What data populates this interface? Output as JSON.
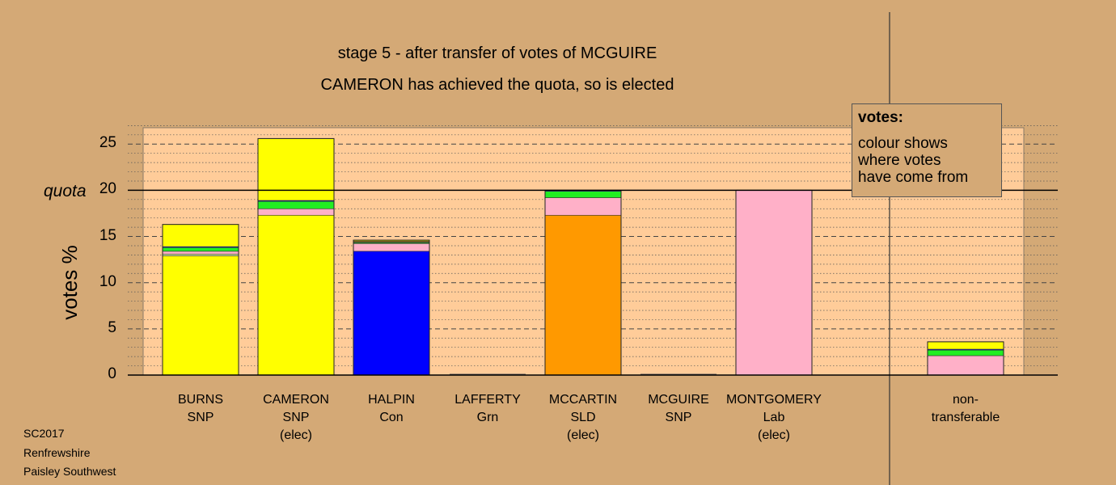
{
  "header": {
    "stage_line": "stage 5 - after transfer of votes of MCGUIRE",
    "status_line": "CAMERON has achieved the quota, so is elected"
  },
  "footer": {
    "line1": "SC2017",
    "line2": "Renfrewshire",
    "line3": "Paisley Southwest"
  },
  "legend": {
    "title": "votes:",
    "text": "colour shows\nwhere votes\nhave come from"
  },
  "colors": {
    "background": "#D4A976",
    "plot_bg": "#FFCC99",
    "SNP": "#FFFF00",
    "Con": "#0000FF",
    "Grn": "#22EE22",
    "SLD": "#FF9900",
    "Lab": "#FFB0C8",
    "Indep": "#D2E6A0"
  },
  "chart_data": {
    "type": "bar",
    "stacked": true,
    "ylabel": "votes %",
    "ylim": [
      0,
      27
    ],
    "yticks": [
      0,
      5,
      10,
      15,
      20,
      25
    ],
    "quota": 20,
    "quota_label": "quota",
    "grid": true,
    "legend_position": "top-right",
    "candidates": [
      {
        "name": "BURNS",
        "party": "SNP",
        "status": "",
        "segments": [
          {
            "from": "SNP",
            "value": 12.9
          },
          {
            "from": "Indep",
            "value": 0.2
          },
          {
            "from": "Lab",
            "value": 0.3
          },
          {
            "from": "Grn",
            "value": 0.4
          },
          {
            "from": "Con",
            "value": 0.1
          },
          {
            "from": "SNP",
            "value": 2.4
          }
        ]
      },
      {
        "name": "CAMERON",
        "party": "SNP",
        "status": "(elec)",
        "segments": [
          {
            "from": "SNP",
            "value": 17.3
          },
          {
            "from": "Lab",
            "value": 0.7
          },
          {
            "from": "Grn",
            "value": 0.8
          },
          {
            "from": "Con",
            "value": 0.1
          },
          {
            "from": "SNP",
            "value": 6.7
          }
        ]
      },
      {
        "name": "HALPIN",
        "party": "Con",
        "status": "",
        "segments": [
          {
            "from": "Con",
            "value": 13.4
          },
          {
            "from": "Lab",
            "value": 0.8
          },
          {
            "from": "Indep",
            "value": 0.1
          },
          {
            "from": "Grn",
            "value": 0.1
          },
          {
            "from": "SLD",
            "value": 0.1
          },
          {
            "from": "SNP",
            "value": 0.1
          }
        ]
      },
      {
        "name": "LAFFERTY",
        "party": "Grn",
        "status": "",
        "segments": []
      },
      {
        "name": "MCCARTIN",
        "party": "SLD",
        "status": "(elec)",
        "segments": [
          {
            "from": "SLD",
            "value": 17.3
          },
          {
            "from": "Lab",
            "value": 1.9
          },
          {
            "from": "Grn",
            "value": 0.7
          },
          {
            "from": "Con",
            "value": 0.1
          }
        ]
      },
      {
        "name": "MCGUIRE",
        "party": "SNP",
        "status": "",
        "segments": []
      },
      {
        "name": "MONTGOMERY",
        "party": "Lab",
        "status": "(elec)",
        "segments": [
          {
            "from": "Lab",
            "value": 20.0
          }
        ]
      },
      {
        "name": "non-",
        "party": "transferable",
        "status": "",
        "separate": true,
        "segments": [
          {
            "from": "Lab",
            "value": 2.1
          },
          {
            "from": "Grn",
            "value": 0.6
          },
          {
            "from": "Con",
            "value": 0.1
          },
          {
            "from": "SNP",
            "value": 0.8
          }
        ]
      }
    ]
  }
}
